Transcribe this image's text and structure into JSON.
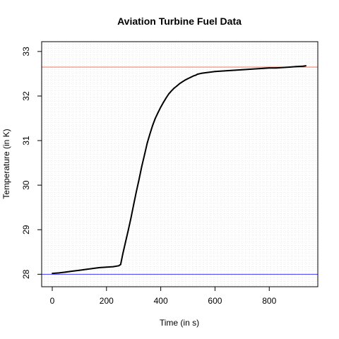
{
  "chart_data": {
    "type": "line",
    "title": "Aviation Turbine Fuel Data",
    "xlabel": "Time (in s)",
    "ylabel": "Temperature (in K)",
    "xlim": [
      -39,
      979
    ],
    "ylim": [
      27.72,
      33.22
    ],
    "x_ticks": [
      0,
      200,
      400,
      600,
      800
    ],
    "x_tick_labels": [
      "0",
      "200",
      "400",
      "600",
      "800"
    ],
    "y_ticks": [
      28,
      29,
      30,
      31,
      32,
      33
    ],
    "y_tick_labels": [
      "28",
      "29",
      "30",
      "31",
      "32",
      "33"
    ],
    "grid": true,
    "grid_style": "dotted",
    "series": [
      {
        "color": "#000000",
        "x": [
          0,
          25,
          50,
          75,
          100,
          125,
          150,
          175,
          200,
          225,
          245,
          252,
          260,
          270,
          280,
          290,
          300,
          310,
          320,
          330,
          340,
          350,
          360,
          370,
          380,
          390,
          400,
          410,
          420,
          430,
          440,
          450,
          460,
          470,
          480,
          490,
          500,
          510,
          520,
          530,
          535,
          550,
          575,
          600,
          625,
          650,
          675,
          700,
          725,
          750,
          775,
          800,
          825,
          850,
          875,
          900,
          925,
          935
        ],
        "y": [
          28.02,
          28.03,
          28.05,
          28.07,
          28.09,
          28.11,
          28.13,
          28.15,
          28.16,
          28.17,
          28.19,
          28.22,
          28.45,
          28.72,
          28.98,
          29.26,
          29.56,
          29.85,
          30.13,
          30.42,
          30.68,
          30.94,
          31.15,
          31.34,
          31.5,
          31.63,
          31.75,
          31.86,
          31.96,
          32.05,
          32.12,
          32.18,
          32.23,
          32.28,
          32.32,
          32.36,
          32.39,
          32.42,
          32.45,
          32.47,
          32.49,
          32.51,
          32.53,
          32.55,
          32.56,
          32.57,
          32.58,
          32.59,
          32.6,
          32.61,
          32.62,
          32.63,
          32.63,
          32.64,
          32.65,
          32.66,
          32.67,
          32.68
        ]
      }
    ],
    "reference_lines": [
      {
        "y": 32.65,
        "color": "#e8765f"
      },
      {
        "y": 28.0,
        "color": "#3b3bff"
      }
    ]
  }
}
